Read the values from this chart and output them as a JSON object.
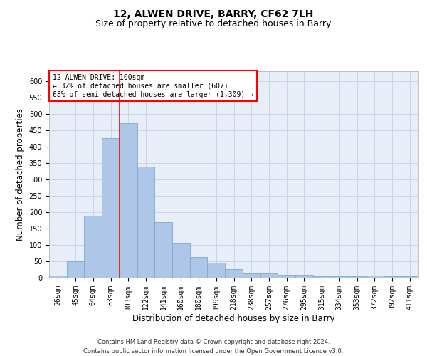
{
  "title": "12, ALWEN DRIVE, BARRY, CF62 7LH",
  "subtitle": "Size of property relative to detached houses in Barry",
  "xlabel": "Distribution of detached houses by size in Barry",
  "ylabel": "Number of detached properties",
  "categories": [
    "26sqm",
    "45sqm",
    "64sqm",
    "83sqm",
    "103sqm",
    "122sqm",
    "141sqm",
    "160sqm",
    "180sqm",
    "199sqm",
    "218sqm",
    "238sqm",
    "257sqm",
    "276sqm",
    "295sqm",
    "315sqm",
    "334sqm",
    "353sqm",
    "372sqm",
    "392sqm",
    "411sqm"
  ],
  "values": [
    6,
    50,
    188,
    425,
    472,
    338,
    170,
    107,
    62,
    45,
    25,
    12,
    12,
    9,
    8,
    5,
    5,
    5,
    6,
    4,
    4
  ],
  "bar_color": "#aec6e8",
  "bar_edge_color": "#7aaad0",
  "grid_color": "#c8d4e8",
  "background_color": "#e8eef8",
  "vline_color": "red",
  "annotation_text": "12 ALWEN DRIVE: 100sqm\n← 32% of detached houses are smaller (607)\n68% of semi-detached houses are larger (1,309) →",
  "annotation_box_color": "white",
  "annotation_box_edge_color": "red",
  "ylim": [
    0,
    630
  ],
  "yticks": [
    0,
    50,
    100,
    150,
    200,
    250,
    300,
    350,
    400,
    450,
    500,
    550,
    600
  ],
  "footnote": "Contains HM Land Registry data © Crown copyright and database right 2024.\nContains public sector information licensed under the Open Government Licence v3.0.",
  "title_fontsize": 10,
  "subtitle_fontsize": 9,
  "xlabel_fontsize": 8.5,
  "ylabel_fontsize": 8.5,
  "tick_fontsize": 7,
  "footnote_fontsize": 6,
  "annotation_fontsize": 7
}
